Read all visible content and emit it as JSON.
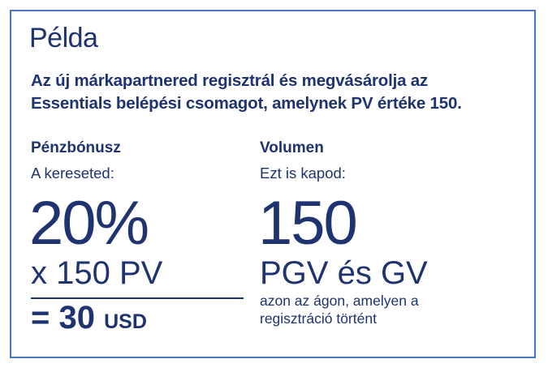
{
  "title": "Példa",
  "lead": [
    "Az új márkapartnered regisztrál és megvásárolja az",
    "Essentials belépési csomagot, amelynek PV értéke 150."
  ],
  "left": {
    "heading": "Pénzbónusz",
    "subheading": "A kereseted:",
    "big": "20%",
    "multiplier": "x 150 PV",
    "total_prefix": "= 30",
    "total_unit": "USD"
  },
  "right": {
    "heading": "Volumen",
    "subheading": "Ezt is kapod:",
    "big": "150",
    "mid": "PGV és GV",
    "note": [
      "azon az ágon, amelyen a",
      "regisztráció történt"
    ]
  },
  "colors": {
    "text": "#1e3370",
    "border": "#4a78c0"
  }
}
